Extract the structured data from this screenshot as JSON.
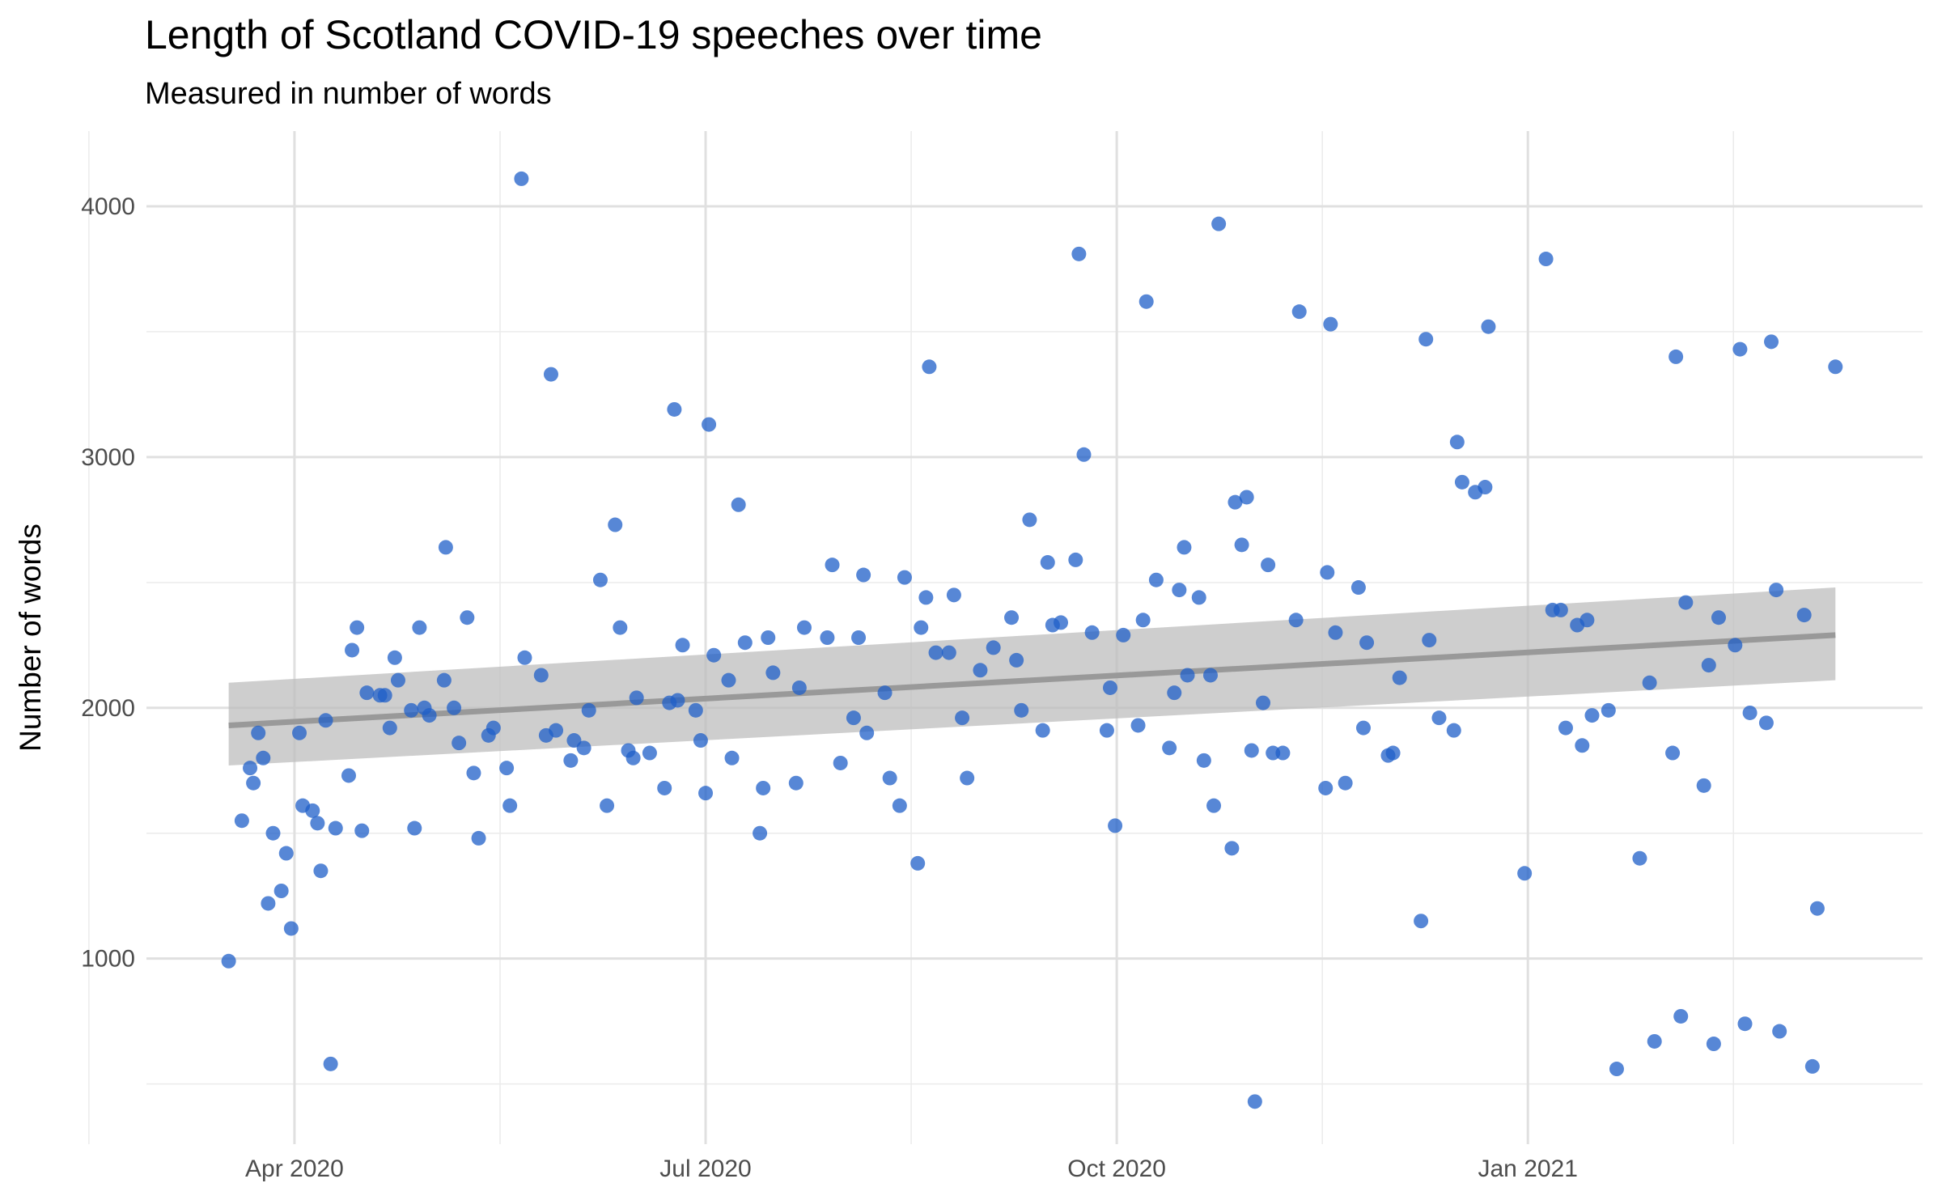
{
  "chart_data": {
    "type": "scatter",
    "title": "Length of Scotland COVID-19 speeches over time",
    "subtitle": "Measured in number of words",
    "y_label": "Number of words",
    "color": "#1f5fc8",
    "xlim": [
      2020.16,
      2021.24
    ],
    "ylim": [
      260,
      4300
    ],
    "xticks": [
      {
        "value": 2020.25,
        "label": "Apr 2020"
      },
      {
        "value": 2020.5,
        "label": "Jul 2020"
      },
      {
        "value": 2020.75,
        "label": "Oct 2020"
      },
      {
        "value": 2021.0,
        "label": "Jan 2021"
      }
    ],
    "xminor": [
      2020.125,
      2020.375,
      2020.625,
      2020.875,
      2021.125
    ],
    "yticks": [
      1000,
      2000,
      3000,
      4000
    ],
    "yminor": [
      500,
      1500,
      2500,
      3500
    ],
    "grid": true,
    "x": [
      2020.21,
      2020.218,
      2020.223,
      2020.225,
      2020.228,
      2020.231,
      2020.234,
      2020.237,
      2020.242,
      2020.245,
      2020.248,
      2020.253,
      2020.255,
      2020.261,
      2020.264,
      2020.266,
      2020.269,
      2020.272,
      2020.275,
      2020.283,
      2020.285,
      2020.288,
      2020.291,
      2020.294,
      2020.302,
      2020.305,
      2020.308,
      2020.311,
      2020.313,
      2020.321,
      2020.323,
      2020.326,
      2020.329,
      2020.332,
      2020.341,
      2020.342,
      2020.347,
      2020.35,
      2020.355,
      2020.359,
      2020.362,
      2020.368,
      2020.371,
      2020.379,
      2020.381,
      2020.388,
      2020.39,
      2020.4,
      2020.403,
      2020.406,
      2020.409,
      2020.418,
      2020.42,
      2020.426,
      2020.429,
      2020.436,
      2020.44,
      2020.445,
      2020.448,
      2020.453,
      2020.456,
      2020.458,
      2020.466,
      2020.475,
      2020.478,
      2020.481,
      2020.483,
      2020.486,
      2020.494,
      2020.497,
      2020.5,
      2020.502,
      2020.505,
      2020.514,
      2020.516,
      2020.52,
      2020.524,
      2020.533,
      2020.535,
      2020.538,
      2020.541,
      2020.555,
      2020.557,
      2020.56,
      2020.574,
      2020.577,
      2020.582,
      2020.59,
      2020.593,
      2020.596,
      2020.598,
      2020.609,
      2020.612,
      2020.618,
      2020.621,
      2020.629,
      2020.631,
      2020.634,
      2020.636,
      2020.64,
      2020.648,
      2020.651,
      2020.656,
      2020.659,
      2020.667,
      2020.675,
      2020.686,
      2020.689,
      2020.692,
      2020.697,
      2020.705,
      2020.708,
      2020.711,
      2020.716,
      2020.725,
      2020.727,
      2020.73,
      2020.735,
      2020.744,
      2020.746,
      2020.749,
      2020.754,
      2020.763,
      2020.766,
      2020.768,
      2020.774,
      2020.782,
      2020.785,
      2020.788,
      2020.791,
      2020.793,
      2020.8,
      2020.803,
      2020.807,
      2020.809,
      2020.812,
      2020.82,
      2020.822,
      2020.826,
      2020.829,
      2020.832,
      2020.834,
      2020.839,
      2020.842,
      2020.845,
      2020.851,
      2020.859,
      2020.861,
      2020.877,
      2020.878,
      2020.88,
      2020.883,
      2020.889,
      2020.897,
      2020.9,
      2020.902,
      2020.915,
      2020.918,
      2020.922,
      2020.935,
      2020.938,
      2020.94,
      2020.946,
      2020.955,
      2020.957,
      2020.96,
      2020.968,
      2020.974,
      2020.976,
      2020.998,
      2021.011,
      2021.015,
      2021.02,
      2021.023,
      2021.03,
      2021.033,
      2021.036,
      2021.039,
      2021.049,
      2021.054,
      2021.068,
      2021.074,
      2021.077,
      2021.088,
      2021.09,
      2021.093,
      2021.096,
      2021.107,
      2021.11,
      2021.113,
      2021.116,
      2021.126,
      2021.129,
      2021.132,
      2021.135,
      2021.145,
      2021.148,
      2021.151,
      2021.153,
      2021.168,
      2021.173,
      2021.176,
      2021.187
    ],
    "values": [
      990,
      1550,
      1760,
      1700,
      1900,
      1800,
      1220,
      1500,
      1270,
      1420,
      1120,
      1900,
      1610,
      1590,
      1540,
      1350,
      1950,
      580,
      1520,
      1730,
      2230,
      2320,
      1510,
      2060,
      2050,
      2050,
      1920,
      2200,
      2110,
      1990,
      1520,
      2320,
      2000,
      1970,
      2110,
      2640,
      2000,
      1860,
      2360,
      1740,
      1480,
      1890,
      1920,
      1760,
      1610,
      4110,
      2200,
      2130,
      1890,
      3330,
      1910,
      1790,
      1870,
      1840,
      1990,
      2510,
      1610,
      2730,
      2320,
      1830,
      1800,
      2040,
      1820,
      1680,
      2020,
      3190,
      2030,
      2250,
      1990,
      1870,
      1660,
      3130,
      2210,
      2110,
      1800,
      2810,
      2260,
      1500,
      1680,
      2280,
      2140,
      1700,
      2080,
      2320,
      2280,
      2570,
      1780,
      1960,
      2280,
      2530,
      1900,
      2060,
      1720,
      1610,
      2520,
      1380,
      2320,
      2440,
      3360,
      2220,
      2220,
      2450,
      1960,
      1720,
      2150,
      2240,
      2360,
      2190,
      1990,
      2750,
      1910,
      2580,
      2330,
      2340,
      2590,
      3810,
      3010,
      2300,
      1910,
      2080,
      1530,
      2290,
      1930,
      2350,
      3620,
      2510,
      1840,
      2060,
      2470,
      2640,
      2130,
      2440,
      1790,
      2130,
      1610,
      3930,
      1440,
      2820,
      2650,
      2840,
      1830,
      430,
      2020,
      2570,
      1820,
      1820,
      2350,
      3580,
      1680,
      2540,
      3530,
      2300,
      1700,
      2480,
      1920,
      2260,
      1810,
      1820,
      2120,
      1150,
      3470,
      2270,
      1960,
      1910,
      3060,
      2900,
      2860,
      2880,
      3520,
      1340,
      3790,
      2390,
      2390,
      1920,
      2330,
      1850,
      2350,
      1970,
      1990,
      560,
      1400,
      2100,
      670,
      1820,
      3400,
      770,
      2420,
      1690,
      2170,
      660,
      2360,
      2250,
      3430,
      740,
      1980,
      1940,
      3460,
      2470,
      710,
      2370,
      570,
      1200,
      3360
    ],
    "trend": {
      "color": "#999999",
      "band_color": "#bdbdbd",
      "x": [
        2020.21,
        2021.187
      ],
      "values": [
        1930,
        2290
      ],
      "lower": [
        1770,
        2110
      ],
      "upper": [
        2100,
        2480
      ]
    }
  }
}
